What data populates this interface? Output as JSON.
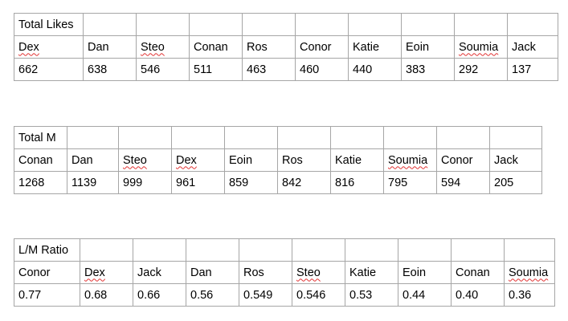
{
  "tables": [
    {
      "title": "Total Likes",
      "names": [
        {
          "text": "Dex",
          "spell": true
        },
        {
          "text": "Dan",
          "spell": false
        },
        {
          "text": "Steo",
          "spell": true
        },
        {
          "text": "Conan",
          "spell": false
        },
        {
          "text": "Ros",
          "spell": false
        },
        {
          "text": "Conor",
          "spell": false
        },
        {
          "text": "Katie",
          "spell": false
        },
        {
          "text": "Eoin",
          "spell": false
        },
        {
          "text": "Soumia",
          "spell": true
        },
        {
          "text": "Jack",
          "spell": false
        }
      ],
      "values": [
        "662",
        "638",
        "546",
        "511",
        "463",
        "460",
        "440",
        "383",
        "292",
        "137"
      ]
    },
    {
      "title": "Total M",
      "names": [
        {
          "text": "Conan",
          "spell": false
        },
        {
          "text": "Dan",
          "spell": false
        },
        {
          "text": "Steo",
          "spell": true
        },
        {
          "text": "Dex",
          "spell": true
        },
        {
          "text": "Eoin",
          "spell": false
        },
        {
          "text": "Ros",
          "spell": false
        },
        {
          "text": "Katie",
          "spell": false
        },
        {
          "text": "Soumia",
          "spell": true
        },
        {
          "text": "Conor",
          "spell": false
        },
        {
          "text": "Jack",
          "spell": false
        }
      ],
      "values": [
        "1268",
        "1139",
        "999",
        "961",
        "859",
        "842",
        "816",
        "795",
        "594",
        "205"
      ]
    },
    {
      "title": "L/M Ratio",
      "names": [
        {
          "text": "Conor",
          "spell": false
        },
        {
          "text": "Dex",
          "spell": true
        },
        {
          "text": "Jack",
          "spell": false
        },
        {
          "text": "Dan",
          "spell": false
        },
        {
          "text": "Ros",
          "spell": false
        },
        {
          "text": "Steo",
          "spell": true
        },
        {
          "text": "Katie",
          "spell": false
        },
        {
          "text": "Eoin",
          "spell": false
        },
        {
          "text": "Conan",
          "spell": false
        },
        {
          "text": "Soumia",
          "spell": true
        }
      ],
      "values": [
        "0.77",
        "0.68",
        "0.66",
        "0.56",
        "0.549",
        "0.546",
        "0.53",
        "0.44",
        "0.40",
        "0.36"
      ]
    }
  ]
}
